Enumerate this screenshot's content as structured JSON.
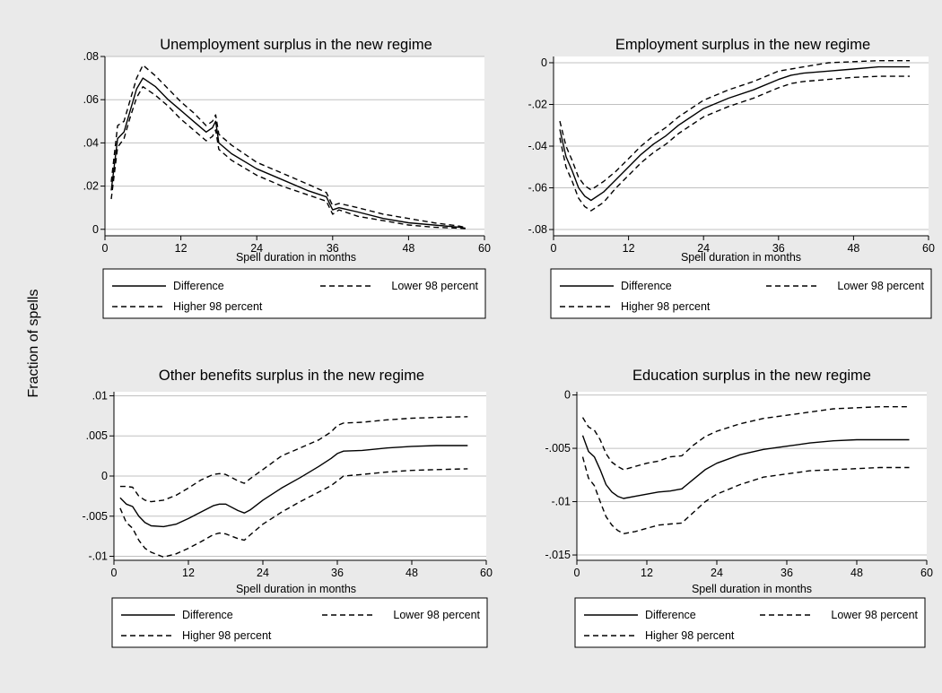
{
  "figure": {
    "y_axis_label": "Fraction of spells",
    "background_color": "#eaeaea",
    "plot_background_color": "#ffffff",
    "grid_color": "#c0c0c0",
    "line_color": "#000000"
  },
  "legend_labels": {
    "difference": "Difference",
    "lower": "Lower 98 percent",
    "higher": "Higher 98 percent"
  },
  "chart_data": [
    {
      "type": "line",
      "title": "Unemployment surplus in the new regime",
      "xlabel": "Spell duration in months",
      "ylabel": "",
      "xlim": [
        0,
        60
      ],
      "ylim": [
        -0.003,
        0.08
      ],
      "xticks": [
        0,
        12,
        24,
        36,
        48,
        60
      ],
      "yticks": [
        0,
        0.02,
        0.04,
        0.06,
        0.08
      ],
      "ytick_labels": [
        "0",
        ".02",
        ".04",
        ".06",
        ".08"
      ],
      "grid": true,
      "legend": "below",
      "series": [
        {
          "name": "Difference",
          "style": "solid",
          "x": [
            1,
            2,
            3,
            4,
            5,
            6,
            8,
            10,
            12,
            14,
            16,
            17,
            17.5,
            18,
            20,
            24,
            28,
            32,
            35,
            36,
            37,
            40,
            44,
            48,
            52,
            56,
            57
          ],
          "y": [
            0.018,
            0.042,
            0.045,
            0.055,
            0.065,
            0.07,
            0.066,
            0.06,
            0.055,
            0.05,
            0.045,
            0.047,
            0.05,
            0.04,
            0.035,
            0.028,
            0.023,
            0.018,
            0.015,
            0.009,
            0.01,
            0.008,
            0.005,
            0.003,
            0.002,
            0.001,
            0.0005
          ]
        },
        {
          "name": "Lower 98 percent",
          "style": "dashed",
          "x": [
            1,
            2,
            3,
            4,
            5,
            6,
            8,
            10,
            12,
            14,
            16,
            17,
            17.5,
            18,
            20,
            24,
            28,
            32,
            35,
            36,
            37,
            40,
            44,
            48,
            52,
            56,
            57
          ],
          "y": [
            0.014,
            0.038,
            0.042,
            0.052,
            0.061,
            0.066,
            0.062,
            0.057,
            0.051,
            0.046,
            0.041,
            0.043,
            0.046,
            0.037,
            0.032,
            0.025,
            0.02,
            0.016,
            0.013,
            0.007,
            0.009,
            0.006,
            0.004,
            0.002,
            0.001,
            0.0005,
            0.0003
          ]
        },
        {
          "name": "Higher 98 percent",
          "style": "dashed",
          "x": [
            1,
            2,
            3,
            4,
            5,
            6,
            8,
            10,
            12,
            14,
            16,
            17,
            17.5,
            18,
            20,
            24,
            28,
            32,
            35,
            36,
            37,
            40,
            44,
            48,
            52,
            56,
            57
          ],
          "y": [
            0.022,
            0.048,
            0.05,
            0.06,
            0.07,
            0.076,
            0.071,
            0.065,
            0.059,
            0.054,
            0.048,
            0.05,
            0.053,
            0.044,
            0.039,
            0.031,
            0.026,
            0.021,
            0.017,
            0.011,
            0.012,
            0.01,
            0.007,
            0.005,
            0.003,
            0.0015,
            0.0008
          ]
        }
      ]
    },
    {
      "type": "line",
      "title": "Employment surplus in the new regime",
      "xlabel": "Spell duration in months",
      "ylabel": "",
      "xlim": [
        0,
        60
      ],
      "ylim": [
        -0.083,
        0.003
      ],
      "xticks": [
        0,
        12,
        24,
        36,
        48,
        60
      ],
      "yticks": [
        0,
        -0.02,
        -0.04,
        -0.06,
        -0.08
      ],
      "ytick_labels": [
        "0",
        "-.02",
        "-.04",
        "-.06",
        "-.08"
      ],
      "grid": true,
      "legend": "below",
      "series": [
        {
          "name": "Difference",
          "style": "solid",
          "x": [
            1,
            2,
            3,
            4,
            5,
            6,
            8,
            10,
            12,
            14,
            16,
            18,
            20,
            24,
            28,
            32,
            36,
            38,
            40,
            44,
            48,
            52,
            57
          ],
          "y": [
            -0.032,
            -0.045,
            -0.052,
            -0.06,
            -0.064,
            -0.066,
            -0.062,
            -0.056,
            -0.05,
            -0.044,
            -0.039,
            -0.035,
            -0.03,
            -0.022,
            -0.017,
            -0.013,
            -0.008,
            -0.006,
            -0.005,
            -0.004,
            -0.003,
            -0.002,
            -0.002
          ]
        },
        {
          "name": "Lower 98 percent",
          "style": "dashed",
          "x": [
            1,
            2,
            3,
            4,
            5,
            6,
            8,
            10,
            12,
            14,
            16,
            18,
            20,
            24,
            28,
            32,
            36,
            38,
            40,
            44,
            48,
            52,
            57
          ],
          "y": [
            -0.036,
            -0.05,
            -0.057,
            -0.065,
            -0.069,
            -0.071,
            -0.067,
            -0.06,
            -0.054,
            -0.048,
            -0.043,
            -0.039,
            -0.034,
            -0.026,
            -0.021,
            -0.017,
            -0.012,
            -0.01,
            -0.009,
            -0.008,
            -0.007,
            -0.0065,
            -0.0065
          ]
        },
        {
          "name": "Higher 98 percent",
          "style": "dashed",
          "x": [
            1,
            2,
            3,
            4,
            5,
            6,
            8,
            10,
            12,
            14,
            16,
            18,
            20,
            24,
            28,
            32,
            36,
            38,
            40,
            44,
            48,
            52,
            57
          ],
          "y": [
            -0.028,
            -0.04,
            -0.047,
            -0.055,
            -0.059,
            -0.061,
            -0.057,
            -0.052,
            -0.046,
            -0.04,
            -0.035,
            -0.031,
            -0.026,
            -0.018,
            -0.013,
            -0.009,
            -0.004,
            -0.003,
            -0.002,
            0.0,
            0.0005,
            0.001,
            0.001
          ]
        }
      ]
    },
    {
      "type": "line",
      "title": "Other benefits surplus in the new regime",
      "xlabel": "Spell duration in months",
      "ylabel": "",
      "xlim": [
        0,
        60
      ],
      "ylim": [
        -0.0105,
        0.0105
      ],
      "xticks": [
        0,
        12,
        24,
        36,
        48,
        60
      ],
      "yticks": [
        0.01,
        0.005,
        0,
        -0.005,
        -0.01
      ],
      "ytick_labels": [
        ".01",
        ".005",
        "0",
        "-.005",
        "-.01"
      ],
      "grid": true,
      "legend": "below",
      "series": [
        {
          "name": "Difference",
          "style": "solid",
          "x": [
            1,
            2,
            3,
            4,
            5,
            6,
            8,
            10,
            12,
            14,
            16,
            17,
            18,
            20,
            21,
            22,
            24,
            27,
            30,
            33,
            35,
            36,
            37,
            40,
            44,
            48,
            52,
            57
          ],
          "y": [
            -0.0027,
            -0.0035,
            -0.0038,
            -0.005,
            -0.0058,
            -0.0062,
            -0.0063,
            -0.006,
            -0.0053,
            -0.0045,
            -0.0037,
            -0.0035,
            -0.0035,
            -0.0043,
            -0.0046,
            -0.0042,
            -0.003,
            -0.0015,
            -0.0002,
            0.0012,
            0.0022,
            0.0028,
            0.0031,
            0.0032,
            0.0035,
            0.0037,
            0.0038,
            0.0038
          ]
        },
        {
          "name": "Lower 98 percent",
          "style": "dashed",
          "x": [
            1,
            2,
            3,
            4,
            5,
            6,
            8,
            10,
            12,
            14,
            16,
            17,
            18,
            20,
            21,
            22,
            24,
            27,
            30,
            33,
            35,
            36,
            37,
            40,
            44,
            48,
            52,
            57
          ],
          "y": [
            -0.004,
            -0.0058,
            -0.0065,
            -0.008,
            -0.009,
            -0.0095,
            -0.0101,
            -0.0097,
            -0.009,
            -0.0082,
            -0.0073,
            -0.0071,
            -0.0072,
            -0.0078,
            -0.008,
            -0.0073,
            -0.006,
            -0.0045,
            -0.0032,
            -0.002,
            -0.0012,
            -0.0006,
            0.0,
            0.0002,
            0.0005,
            0.0007,
            0.0008,
            0.0009
          ]
        },
        {
          "name": "Higher 98 percent",
          "style": "dashed",
          "x": [
            1,
            2,
            3,
            4,
            5,
            6,
            8,
            10,
            12,
            14,
            16,
            17,
            18,
            20,
            21,
            22,
            24,
            27,
            30,
            33,
            35,
            36,
            37,
            40,
            44,
            48,
            52,
            57
          ],
          "y": [
            -0.0013,
            -0.0013,
            -0.0014,
            -0.0025,
            -0.003,
            -0.0032,
            -0.003,
            -0.0024,
            -0.0015,
            -0.0005,
            0.0002,
            0.0003,
            0.0002,
            -0.0006,
            -0.0009,
            -0.0003,
            0.0008,
            0.0025,
            0.0035,
            0.0045,
            0.0055,
            0.0063,
            0.0066,
            0.0067,
            0.007,
            0.0072,
            0.0073,
            0.0074
          ]
        }
      ]
    },
    {
      "type": "line",
      "title": "Education surplus in the new regime",
      "xlabel": "Spell duration in months",
      "ylabel": "",
      "xlim": [
        0,
        60
      ],
      "ylim": [
        -0.0155,
        0.0003
      ],
      "xticks": [
        0,
        12,
        24,
        36,
        48,
        60
      ],
      "yticks": [
        0,
        -0.005,
        -0.01,
        -0.015
      ],
      "ytick_labels": [
        "0",
        "-.005",
        "-.01",
        "-.015"
      ],
      "grid": true,
      "legend": "below",
      "series": [
        {
          "name": "Difference",
          "style": "solid",
          "x": [
            1,
            2,
            3,
            4,
            5,
            6,
            7,
            8,
            10,
            12,
            14,
            16,
            18,
            20,
            22,
            24,
            28,
            32,
            36,
            40,
            44,
            48,
            52,
            57
          ],
          "y": [
            -0.0038,
            -0.0053,
            -0.0058,
            -0.007,
            -0.0084,
            -0.0091,
            -0.0095,
            -0.0097,
            -0.0095,
            -0.0093,
            -0.0091,
            -0.009,
            -0.0088,
            -0.0079,
            -0.007,
            -0.0064,
            -0.0056,
            -0.0051,
            -0.0048,
            -0.0045,
            -0.0043,
            -0.0042,
            -0.0042,
            -0.0042
          ]
        },
        {
          "name": "Lower 98 percent",
          "style": "dashed",
          "x": [
            1,
            2,
            3,
            4,
            5,
            6,
            7,
            8,
            10,
            12,
            14,
            16,
            18,
            20,
            22,
            24,
            28,
            32,
            36,
            40,
            44,
            48,
            52,
            57
          ],
          "y": [
            -0.0058,
            -0.0078,
            -0.0085,
            -0.01,
            -0.0114,
            -0.0122,
            -0.0127,
            -0.013,
            -0.0128,
            -0.0125,
            -0.0122,
            -0.0121,
            -0.012,
            -0.011,
            -0.01,
            -0.0093,
            -0.0084,
            -0.0077,
            -0.0074,
            -0.0071,
            -0.007,
            -0.0069,
            -0.0068,
            -0.0068
          ]
        },
        {
          "name": "Higher 98 percent",
          "style": "dashed",
          "x": [
            1,
            2,
            3,
            4,
            5,
            6,
            7,
            8,
            10,
            12,
            14,
            16,
            18,
            20,
            22,
            24,
            28,
            32,
            36,
            40,
            44,
            48,
            52,
            57
          ],
          "y": [
            -0.0021,
            -0.003,
            -0.0033,
            -0.0042,
            -0.0055,
            -0.0063,
            -0.0067,
            -0.007,
            -0.0067,
            -0.0064,
            -0.0062,
            -0.0058,
            -0.0057,
            -0.0047,
            -0.0039,
            -0.0034,
            -0.0027,
            -0.0022,
            -0.0019,
            -0.0016,
            -0.0013,
            -0.0012,
            -0.0011,
            -0.0011
          ]
        }
      ]
    }
  ]
}
